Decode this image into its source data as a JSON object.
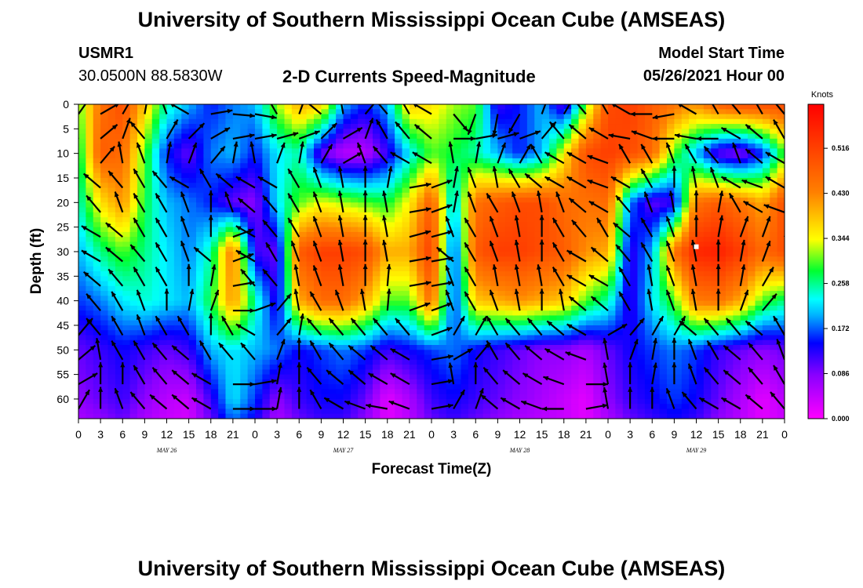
{
  "header": {
    "title": "University of Southern Mississippi Ocean Cube (AMSEAS)",
    "station_id": "USMR1",
    "coordinates": "30.0500N  88.5830W",
    "product": "2-D Currents Speed-Magnitude",
    "model_start_label": "Model Start Time",
    "model_start_value": "05/26/2021 Hour 00"
  },
  "footer": {
    "title": "University of Southern Mississippi Ocean Cube (AMSEAS)"
  },
  "chart_data": {
    "type": "heatmap",
    "title": "2-D Currents Speed-Magnitude",
    "xlabel": "Forecast Time(Z)",
    "ylabel": "Depth (ft)",
    "x_ticks": [
      "0",
      "3",
      "6",
      "9",
      "12",
      "15",
      "18",
      "21",
      "0",
      "3",
      "6",
      "9",
      "12",
      "15",
      "18",
      "21",
      "0",
      "3",
      "6",
      "9",
      "12",
      "15",
      "18",
      "21",
      "0",
      "3",
      "6",
      "9",
      "12",
      "15",
      "18",
      "21",
      "0"
    ],
    "x_range_hours": [
      0,
      96
    ],
    "date_labels": [
      {
        "label": "MAY 26",
        "hour": 12
      },
      {
        "label": "MAY 27",
        "hour": 36
      },
      {
        "label": "MAY 28",
        "hour": 60
      },
      {
        "label": "MAY 29",
        "hour": 84
      }
    ],
    "y_ticks": [
      "0",
      "5",
      "10",
      "15",
      "20",
      "25",
      "30",
      "35",
      "40",
      "45",
      "50",
      "55",
      "60"
    ],
    "y_range_ft": [
      0,
      64
    ],
    "y_inverted": true,
    "colorbar": {
      "label": "Knots",
      "ticks": [
        "0.516",
        "0.430",
        "0.344",
        "0.258",
        "0.172",
        "0.086",
        "0.000"
      ],
      "range": [
        0,
        0.6
      ]
    },
    "speed_depths_ft": [
      0,
      10,
      20,
      30,
      40,
      50,
      60,
      64
    ],
    "speed_hours": [
      0,
      3,
      6,
      9,
      12,
      15,
      18,
      21,
      24,
      27,
      30,
      33,
      36,
      39,
      42,
      45,
      48,
      51,
      54,
      57,
      60,
      63,
      66,
      69,
      72,
      75,
      78,
      81,
      84,
      87,
      90,
      93,
      96
    ],
    "speed_knots": [
      [
        0.3,
        0.45,
        0.5,
        0.38,
        0.25,
        0.2,
        0.15,
        0.18,
        0.2,
        0.32,
        0.4,
        0.38,
        0.2,
        0.15,
        0.2,
        0.38,
        0.36,
        0.32,
        0.3,
        0.12,
        0.15,
        0.2,
        0.1,
        0.3,
        0.5,
        0.52,
        0.48,
        0.45,
        0.42,
        0.48,
        0.5,
        0.5,
        0.5
      ],
      [
        0.26,
        0.48,
        0.46,
        0.3,
        0.15,
        0.1,
        0.18,
        0.2,
        0.15,
        0.22,
        0.25,
        0.1,
        0.05,
        0.05,
        0.12,
        0.22,
        0.3,
        0.28,
        0.25,
        0.2,
        0.15,
        0.2,
        0.35,
        0.5,
        0.52,
        0.5,
        0.46,
        0.3,
        0.2,
        0.1,
        0.08,
        0.15,
        0.3
      ],
      [
        0.24,
        0.36,
        0.42,
        0.28,
        0.2,
        0.18,
        0.15,
        0.1,
        0.08,
        0.22,
        0.3,
        0.34,
        0.32,
        0.3,
        0.28,
        0.35,
        0.48,
        0.2,
        0.45,
        0.48,
        0.5,
        0.5,
        0.46,
        0.45,
        0.46,
        0.18,
        0.1,
        0.12,
        0.45,
        0.48,
        0.45,
        0.4,
        0.5
      ],
      [
        0.2,
        0.26,
        0.3,
        0.26,
        0.22,
        0.18,
        0.25,
        0.45,
        0.12,
        0.1,
        0.48,
        0.52,
        0.52,
        0.5,
        0.4,
        0.4,
        0.52,
        0.14,
        0.48,
        0.52,
        0.52,
        0.5,
        0.48,
        0.42,
        0.4,
        0.12,
        0.2,
        0.45,
        0.55,
        0.56,
        0.52,
        0.46,
        0.5
      ],
      [
        0.16,
        0.18,
        0.22,
        0.24,
        0.22,
        0.2,
        0.28,
        0.42,
        0.25,
        0.12,
        0.4,
        0.46,
        0.46,
        0.4,
        0.3,
        0.3,
        0.46,
        0.15,
        0.38,
        0.4,
        0.42,
        0.4,
        0.38,
        0.3,
        0.25,
        0.12,
        0.22,
        0.3,
        0.44,
        0.45,
        0.4,
        0.3,
        0.26
      ],
      [
        0.1,
        0.12,
        0.14,
        0.12,
        0.1,
        0.12,
        0.2,
        0.22,
        0.2,
        0.18,
        0.14,
        0.16,
        0.18,
        0.16,
        0.12,
        0.14,
        0.16,
        0.18,
        0.14,
        0.12,
        0.1,
        0.08,
        0.08,
        0.06,
        0.1,
        0.14,
        0.16,
        0.18,
        0.16,
        0.12,
        0.1,
        0.08,
        0.1
      ],
      [
        0.08,
        0.1,
        0.12,
        0.08,
        0.05,
        0.04,
        0.12,
        0.22,
        0.16,
        0.08,
        0.12,
        0.14,
        0.14,
        0.1,
        0.02,
        0.06,
        0.12,
        0.14,
        0.12,
        0.1,
        0.08,
        0.06,
        0.04,
        0.02,
        0.08,
        0.12,
        0.14,
        0.16,
        0.14,
        0.1,
        0.06,
        0.02,
        0.05
      ],
      [
        0.06,
        0.08,
        0.1,
        0.06,
        0.04,
        0.03,
        0.1,
        0.18,
        0.14,
        0.06,
        0.1,
        0.12,
        0.12,
        0.08,
        0.02,
        0.05,
        0.1,
        0.12,
        0.1,
        0.08,
        0.06,
        0.05,
        0.04,
        0.02,
        0.06,
        0.1,
        0.12,
        0.14,
        0.12,
        0.08,
        0.05,
        0.02,
        0.04
      ]
    ],
    "vector_depths_ft": [
      2,
      7,
      12,
      17,
      22,
      27,
      32,
      37,
      42,
      47,
      52,
      57,
      62
    ],
    "vector_hours": [
      0,
      3,
      6,
      9,
      12,
      15,
      18,
      21,
      24,
      27,
      30,
      33,
      36,
      39,
      42,
      45,
      48,
      51,
      54,
      57,
      60,
      63,
      66,
      69,
      72,
      75,
      78,
      81,
      84,
      87,
      90,
      93,
      96
    ],
    "vector_direction_deg": [
      [
        35,
        60,
        30,
        10,
        340,
        300,
        80,
        95,
        100,
        330,
        20,
        310,
        350,
        40,
        320,
        330,
        300,
        140,
        200,
        190,
        210,
        20,
        30,
        320,
        330,
        300,
        270,
        260,
        300,
        330,
        320,
        330,
        320
      ],
      [
        330,
        50,
        20,
        320,
        30,
        45,
        60,
        80,
        80,
        75,
        70,
        45,
        60,
        20,
        330,
        320,
        310,
        90,
        80,
        75,
        70,
        40,
        320,
        310,
        300,
        280,
        290,
        270,
        280,
        270,
        300,
        310,
        330
      ],
      [
        300,
        40,
        350,
        340,
        10,
        20,
        40,
        10,
        350,
        20,
        10,
        30,
        60,
        340,
        320,
        300,
        300,
        350,
        10,
        20,
        30,
        330,
        300,
        300,
        290,
        330,
        330,
        340,
        330,
        320,
        340,
        310,
        300
      ],
      [
        300,
        310,
        320,
        330,
        320,
        300,
        330,
        310,
        300,
        300,
        330,
        340,
        350,
        0,
        10,
        80,
        70,
        10,
        340,
        350,
        330,
        310,
        300,
        300,
        290,
        300,
        330,
        0,
        350,
        340,
        300,
        290,
        300
      ],
      [
        300,
        320,
        340,
        330,
        330,
        340,
        0,
        340,
        310,
        320,
        330,
        340,
        350,
        0,
        350,
        80,
        70,
        10,
        340,
        330,
        340,
        350,
        340,
        310,
        300,
        320,
        340,
        350,
        0,
        10,
        330,
        300,
        290
      ],
      [
        300,
        300,
        310,
        330,
        330,
        340,
        0,
        70,
        300,
        320,
        330,
        340,
        350,
        0,
        350,
        75,
        75,
        340,
        330,
        340,
        350,
        0,
        330,
        320,
        330,
        310,
        330,
        340,
        0,
        10,
        20,
        20,
        20
      ],
      [
        290,
        300,
        310,
        320,
        330,
        340,
        310,
        70,
        300,
        330,
        340,
        340,
        350,
        0,
        350,
        80,
        80,
        310,
        330,
        340,
        350,
        0,
        330,
        300,
        310,
        320,
        330,
        340,
        350,
        0,
        10,
        20,
        90
      ],
      [
        300,
        310,
        320,
        330,
        330,
        0,
        10,
        80,
        320,
        320,
        350,
        340,
        350,
        0,
        5,
        80,
        80,
        340,
        330,
        350,
        350,
        350,
        330,
        300,
        300,
        330,
        350,
        340,
        350,
        0,
        10,
        30,
        90
      ],
      [
        310,
        320,
        330,
        340,
        0,
        10,
        20,
        90,
        70,
        40,
        350,
        330,
        340,
        350,
        5,
        70,
        70,
        340,
        330,
        340,
        350,
        0,
        350,
        310,
        310,
        330,
        350,
        340,
        350,
        0,
        20,
        40,
        90
      ],
      [
        40,
        320,
        330,
        340,
        330,
        330,
        0,
        330,
        300,
        40,
        10,
        320,
        320,
        320,
        320,
        320,
        70,
        30,
        30,
        330,
        320,
        320,
        310,
        300,
        60,
        40,
        30,
        30,
        310,
        320,
        320,
        310,
        330
      ],
      [
        50,
        350,
        330,
        330,
        320,
        310,
        330,
        320,
        320,
        20,
        0,
        330,
        320,
        310,
        310,
        300,
        80,
        60,
        40,
        330,
        320,
        310,
        300,
        290,
        350,
        20,
        10,
        0,
        340,
        330,
        310,
        320,
        340
      ],
      [
        60,
        0,
        0,
        330,
        320,
        310,
        300,
        90,
        80,
        10,
        0,
        320,
        310,
        310,
        300,
        300,
        80,
        350,
        0,
        320,
        310,
        300,
        290,
        90,
        350,
        0,
        10,
        0,
        340,
        320,
        310,
        320,
        330
      ],
      [
        30,
        0,
        340,
        320,
        310,
        310,
        300,
        90,
        90,
        10,
        0,
        330,
        300,
        290,
        280,
        290,
        80,
        30,
        20,
        310,
        300,
        290,
        270,
        80,
        350,
        0,
        0,
        340,
        320,
        300,
        300,
        310,
        320
      ]
    ],
    "annotation": {
      "label": "white marker",
      "hour": 84,
      "depth_ft": 29
    }
  }
}
